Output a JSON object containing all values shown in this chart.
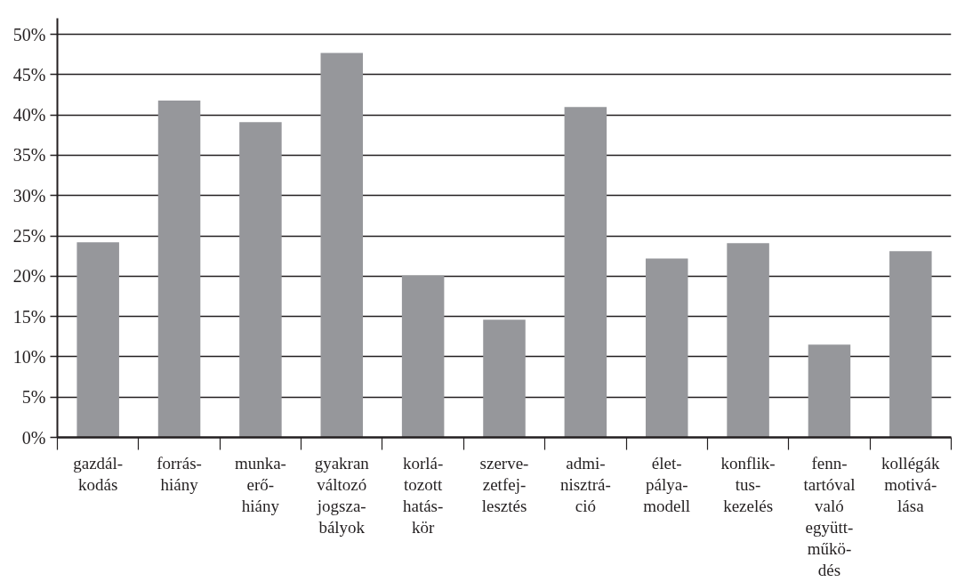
{
  "chart_data": {
    "type": "bar",
    "categories": [
      "gazdál-\nkodás",
      "forrás-\nhiány",
      "munka-\nerő-\nhiány",
      "gyakran\nváltozó\njogsza-\nbályok",
      "korlá-\ntozott\nhatás-\nkör",
      "szerve-\nzetfej-\nlesztés",
      "admi-\nnisztrá-\nció",
      "élet-\npálya-\nmodell",
      "konflik-\ntus-\nkezelés",
      "fenn-\ntartóval\nvaló\negyütt-\nműkö-\ndés",
      "kollégák\nmotivá-\nlása"
    ],
    "values": [
      24.2,
      41.8,
      39.1,
      47.7,
      20.1,
      14.6,
      41.0,
      22.2,
      24.1,
      11.5,
      23.1
    ],
    "color": "#96979b",
    "ylim": [
      0,
      52
    ],
    "yticks": [
      {
        "value": 0,
        "label": "0%"
      },
      {
        "value": 5,
        "label": "5%"
      },
      {
        "value": 10,
        "label": "10%"
      },
      {
        "value": 15,
        "label": "15%"
      },
      {
        "value": 20,
        "label": "20%"
      },
      {
        "value": 25,
        "label": "25%"
      },
      {
        "value": 30,
        "label": "30%"
      },
      {
        "value": 35,
        "label": "35%"
      },
      {
        "value": 40,
        "label": "40%"
      },
      {
        "value": 45,
        "label": "45%"
      },
      {
        "value": 50,
        "label": "50%"
      }
    ],
    "grid": "y"
  }
}
